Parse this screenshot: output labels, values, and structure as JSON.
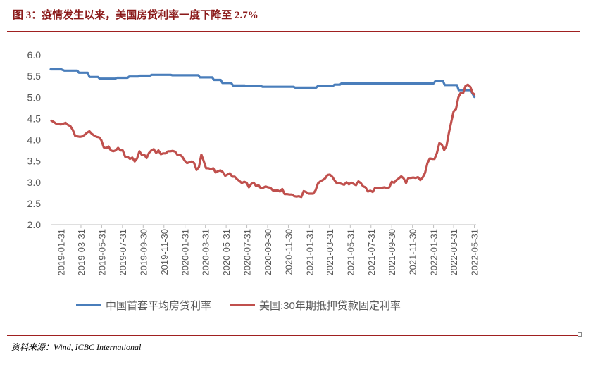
{
  "title": "图 3：疫情发生以来，美国房贷利率一度下降至 2.7%",
  "source": "资料来源：Wind, ICBC International",
  "chart_data": {
    "type": "line",
    "ylim": [
      2.0,
      6.0
    ],
    "y_ticks": [
      "6.0",
      "5.5",
      "5.0",
      "4.5",
      "4.0",
      "3.5",
      "3.0",
      "2.5",
      "2.0"
    ],
    "x_ticks": [
      "2019-01-31",
      "2019-03-31",
      "2019-05-31",
      "2019-07-31",
      "2019-09-30",
      "2019-11-30",
      "2020-01-31",
      "2020-03-31",
      "2020-05-31",
      "2020-07-31",
      "2020-09-30",
      "2020-11-30",
      "2021-01-31",
      "2021-03-31",
      "2021-05-31",
      "2021-07-31",
      "2021-09-30",
      "2021-11-30",
      "2022-01-31",
      "2022-03-31",
      "2022-05-31"
    ],
    "xlim": [
      "2019-01-01",
      "2022-06-01"
    ],
    "legend_position": "bottom",
    "series": [
      {
        "name": "中国首套平均房贷利率",
        "color": "#4a7ebb",
        "points": [
          [
            "2019-01-01",
            5.66
          ],
          [
            "2019-02-01",
            5.66
          ],
          [
            "2019-02-10",
            5.63
          ],
          [
            "2019-03-20",
            5.63
          ],
          [
            "2019-03-25",
            5.58
          ],
          [
            "2019-04-20",
            5.58
          ],
          [
            "2019-04-25",
            5.48
          ],
          [
            "2019-05-20",
            5.48
          ],
          [
            "2019-05-25",
            5.44
          ],
          [
            "2019-07-10",
            5.44
          ],
          [
            "2019-07-15",
            5.46
          ],
          [
            "2019-08-15",
            5.46
          ],
          [
            "2019-08-20",
            5.49
          ],
          [
            "2019-09-15",
            5.49
          ],
          [
            "2019-09-20",
            5.51
          ],
          [
            "2019-10-20",
            5.51
          ],
          [
            "2019-10-25",
            5.53
          ],
          [
            "2019-12-20",
            5.53
          ],
          [
            "2019-12-25",
            5.52
          ],
          [
            "2020-03-10",
            5.52
          ],
          [
            "2020-03-15",
            5.47
          ],
          [
            "2020-04-20",
            5.47
          ],
          [
            "2020-04-25",
            5.41
          ],
          [
            "2020-05-15",
            5.41
          ],
          [
            "2020-05-20",
            5.34
          ],
          [
            "2020-06-15",
            5.34
          ],
          [
            "2020-06-20",
            5.28
          ],
          [
            "2020-07-25",
            5.28
          ],
          [
            "2020-07-30",
            5.27
          ],
          [
            "2020-09-10",
            5.27
          ],
          [
            "2020-09-15",
            5.25
          ],
          [
            "2020-12-15",
            5.25
          ],
          [
            "2020-12-20",
            5.23
          ],
          [
            "2021-02-20",
            5.23
          ],
          [
            "2021-02-25",
            5.27
          ],
          [
            "2021-04-10",
            5.27
          ],
          [
            "2021-04-15",
            5.3
          ],
          [
            "2021-05-01",
            5.3
          ],
          [
            "2021-05-05",
            5.33
          ],
          [
            "2022-01-31",
            5.33
          ],
          [
            "2022-02-05",
            5.38
          ],
          [
            "2022-02-28",
            5.38
          ],
          [
            "2022-03-05",
            5.29
          ],
          [
            "2022-04-10",
            5.29
          ],
          [
            "2022-04-15",
            5.17
          ],
          [
            "2022-05-20",
            5.17
          ],
          [
            "2022-05-31",
            5.01
          ]
        ]
      },
      {
        "name": "美国:30年期抵押贷款固定利率",
        "color": "#c0504d",
        "points": [
          [
            "2019-01-03",
            4.45
          ],
          [
            "2019-01-10",
            4.42
          ],
          [
            "2019-01-17",
            4.38
          ],
          [
            "2019-01-24",
            4.37
          ],
          [
            "2019-01-31",
            4.36
          ],
          [
            "2019-02-07",
            4.38
          ],
          [
            "2019-02-14",
            4.4
          ],
          [
            "2019-02-21",
            4.35
          ],
          [
            "2019-02-28",
            4.32
          ],
          [
            "2019-03-07",
            4.23
          ],
          [
            "2019-03-14",
            4.09
          ],
          [
            "2019-03-21",
            4.08
          ],
          [
            "2019-03-28",
            4.07
          ],
          [
            "2019-04-04",
            4.08
          ],
          [
            "2019-04-11",
            4.12
          ],
          [
            "2019-04-18",
            4.17
          ],
          [
            "2019-04-25",
            4.2
          ],
          [
            "2019-05-02",
            4.14
          ],
          [
            "2019-05-09",
            4.1
          ],
          [
            "2019-05-16",
            4.07
          ],
          [
            "2019-05-23",
            4.06
          ],
          [
            "2019-05-30",
            3.99
          ],
          [
            "2019-06-06",
            3.82
          ],
          [
            "2019-06-13",
            3.8
          ],
          [
            "2019-06-20",
            3.84
          ],
          [
            "2019-06-27",
            3.75
          ],
          [
            "2019-07-04",
            3.73
          ],
          [
            "2019-07-11",
            3.75
          ],
          [
            "2019-07-18",
            3.81
          ],
          [
            "2019-07-25",
            3.75
          ],
          [
            "2019-08-01",
            3.75
          ],
          [
            "2019-08-08",
            3.6
          ],
          [
            "2019-08-15",
            3.6
          ],
          [
            "2019-08-22",
            3.55
          ],
          [
            "2019-08-29",
            3.58
          ],
          [
            "2019-09-05",
            3.49
          ],
          [
            "2019-09-12",
            3.56
          ],
          [
            "2019-09-19",
            3.73
          ],
          [
            "2019-09-26",
            3.64
          ],
          [
            "2019-10-03",
            3.65
          ],
          [
            "2019-10-10",
            3.57
          ],
          [
            "2019-10-17",
            3.69
          ],
          [
            "2019-10-24",
            3.75
          ],
          [
            "2019-10-31",
            3.78
          ],
          [
            "2019-11-07",
            3.69
          ],
          [
            "2019-11-14",
            3.75
          ],
          [
            "2019-11-21",
            3.66
          ],
          [
            "2019-11-28",
            3.68
          ],
          [
            "2019-12-05",
            3.68
          ],
          [
            "2019-12-12",
            3.73
          ],
          [
            "2019-12-19",
            3.73
          ],
          [
            "2019-12-26",
            3.74
          ],
          [
            "2020-01-02",
            3.72
          ],
          [
            "2020-01-09",
            3.64
          ],
          [
            "2020-01-16",
            3.65
          ],
          [
            "2020-01-23",
            3.6
          ],
          [
            "2020-01-30",
            3.51
          ],
          [
            "2020-02-06",
            3.45
          ],
          [
            "2020-02-13",
            3.47
          ],
          [
            "2020-02-20",
            3.49
          ],
          [
            "2020-02-27",
            3.45
          ],
          [
            "2020-03-05",
            3.29
          ],
          [
            "2020-03-12",
            3.36
          ],
          [
            "2020-03-19",
            3.65
          ],
          [
            "2020-03-26",
            3.5
          ],
          [
            "2020-04-02",
            3.33
          ],
          [
            "2020-04-09",
            3.33
          ],
          [
            "2020-04-16",
            3.31
          ],
          [
            "2020-04-23",
            3.33
          ],
          [
            "2020-04-30",
            3.23
          ],
          [
            "2020-05-07",
            3.26
          ],
          [
            "2020-05-14",
            3.28
          ],
          [
            "2020-05-21",
            3.24
          ],
          [
            "2020-05-28",
            3.15
          ],
          [
            "2020-06-04",
            3.18
          ],
          [
            "2020-06-11",
            3.21
          ],
          [
            "2020-06-18",
            3.13
          ],
          [
            "2020-06-25",
            3.13
          ],
          [
            "2020-07-02",
            3.07
          ],
          [
            "2020-07-09",
            3.03
          ],
          [
            "2020-07-16",
            2.98
          ],
          [
            "2020-07-23",
            3.01
          ],
          [
            "2020-07-30",
            2.99
          ],
          [
            "2020-08-06",
            2.88
          ],
          [
            "2020-08-13",
            2.96
          ],
          [
            "2020-08-20",
            2.99
          ],
          [
            "2020-08-27",
            2.91
          ],
          [
            "2020-09-03",
            2.93
          ],
          [
            "2020-09-10",
            2.86
          ],
          [
            "2020-09-17",
            2.87
          ],
          [
            "2020-09-24",
            2.9
          ],
          [
            "2020-10-01",
            2.88
          ],
          [
            "2020-10-08",
            2.87
          ],
          [
            "2020-10-15",
            2.81
          ],
          [
            "2020-10-22",
            2.8
          ],
          [
            "2020-10-29",
            2.81
          ],
          [
            "2020-11-05",
            2.78
          ],
          [
            "2020-11-12",
            2.84
          ],
          [
            "2020-11-19",
            2.72
          ],
          [
            "2020-11-26",
            2.72
          ],
          [
            "2020-12-03",
            2.71
          ],
          [
            "2020-12-10",
            2.71
          ],
          [
            "2020-12-17",
            2.67
          ],
          [
            "2020-12-24",
            2.66
          ],
          [
            "2020-12-31",
            2.67
          ],
          [
            "2021-01-07",
            2.65
          ],
          [
            "2021-01-14",
            2.79
          ],
          [
            "2021-01-21",
            2.77
          ],
          [
            "2021-01-28",
            2.73
          ],
          [
            "2021-02-04",
            2.73
          ],
          [
            "2021-02-11",
            2.73
          ],
          [
            "2021-02-18",
            2.81
          ],
          [
            "2021-02-25",
            2.97
          ],
          [
            "2021-03-04",
            3.02
          ],
          [
            "2021-03-11",
            3.05
          ],
          [
            "2021-03-18",
            3.09
          ],
          [
            "2021-03-25",
            3.17
          ],
          [
            "2021-04-01",
            3.18
          ],
          [
            "2021-04-08",
            3.13
          ],
          [
            "2021-04-15",
            3.04
          ],
          [
            "2021-04-22",
            2.97
          ],
          [
            "2021-04-29",
            2.98
          ],
          [
            "2021-05-06",
            2.96
          ],
          [
            "2021-05-13",
            2.94
          ],
          [
            "2021-05-20",
            3.0
          ],
          [
            "2021-05-27",
            2.95
          ],
          [
            "2021-06-03",
            2.99
          ],
          [
            "2021-06-10",
            2.96
          ],
          [
            "2021-06-17",
            2.93
          ],
          [
            "2021-06-24",
            3.02
          ],
          [
            "2021-07-01",
            2.98
          ],
          [
            "2021-07-08",
            2.9
          ],
          [
            "2021-07-15",
            2.88
          ],
          [
            "2021-07-22",
            2.78
          ],
          [
            "2021-07-29",
            2.8
          ],
          [
            "2021-08-05",
            2.77
          ],
          [
            "2021-08-12",
            2.87
          ],
          [
            "2021-08-19",
            2.86
          ],
          [
            "2021-08-26",
            2.87
          ],
          [
            "2021-09-02",
            2.87
          ],
          [
            "2021-09-09",
            2.88
          ],
          [
            "2021-09-16",
            2.86
          ],
          [
            "2021-09-23",
            2.88
          ],
          [
            "2021-09-30",
            3.01
          ],
          [
            "2021-10-07",
            2.99
          ],
          [
            "2021-10-14",
            3.05
          ],
          [
            "2021-10-21",
            3.09
          ],
          [
            "2021-10-28",
            3.14
          ],
          [
            "2021-11-04",
            3.09
          ],
          [
            "2021-11-11",
            2.98
          ],
          [
            "2021-11-18",
            3.1
          ],
          [
            "2021-11-25",
            3.1
          ],
          [
            "2021-12-02",
            3.11
          ],
          [
            "2021-12-09",
            3.1
          ],
          [
            "2021-12-16",
            3.12
          ],
          [
            "2021-12-23",
            3.05
          ],
          [
            "2021-12-30",
            3.11
          ],
          [
            "2022-01-06",
            3.22
          ],
          [
            "2022-01-13",
            3.45
          ],
          [
            "2022-01-20",
            3.56
          ],
          [
            "2022-01-27",
            3.55
          ],
          [
            "2022-02-03",
            3.55
          ],
          [
            "2022-02-10",
            3.69
          ],
          [
            "2022-02-17",
            3.92
          ],
          [
            "2022-02-24",
            3.89
          ],
          [
            "2022-03-03",
            3.76
          ],
          [
            "2022-03-10",
            3.85
          ],
          [
            "2022-03-17",
            4.16
          ],
          [
            "2022-03-24",
            4.42
          ],
          [
            "2022-03-31",
            4.67
          ],
          [
            "2022-04-07",
            4.72
          ],
          [
            "2022-04-14",
            5.0
          ],
          [
            "2022-04-21",
            5.11
          ],
          [
            "2022-04-28",
            5.1
          ],
          [
            "2022-05-05",
            5.27
          ],
          [
            "2022-05-12",
            5.3
          ],
          [
            "2022-05-19",
            5.25
          ],
          [
            "2022-05-26",
            5.1
          ],
          [
            "2022-05-31",
            5.07
          ]
        ]
      }
    ]
  }
}
